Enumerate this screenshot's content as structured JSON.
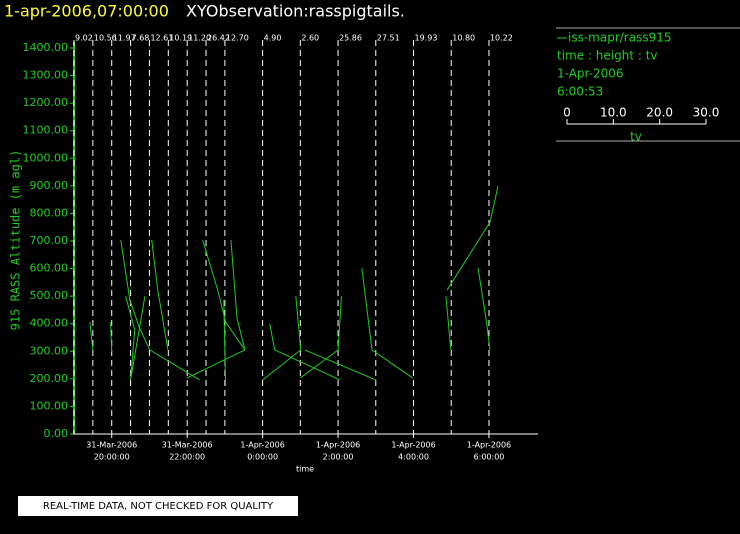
{
  "header": {
    "date": "1-apr-2006,07:00:00",
    "title": "XYObservation:rasspigtails."
  },
  "chart_data": {
    "type": "pigtail",
    "ylabel": "915 RASS Altitude (m agl)",
    "xlabel": "time",
    "color": "#22cc22",
    "xlim": [
      19,
      31.3
    ],
    "ylim": [
      0,
      1400
    ],
    "xticks": [
      {
        "value": 20,
        "label": [
          "31-Mar-2006",
          "20:00:00"
        ]
      },
      {
        "value": 22,
        "label": [
          "31-Mar-2006",
          "22:00:00"
        ]
      },
      {
        "value": 24,
        "label": [
          "1-Apr-2006",
          "0:00:00"
        ]
      },
      {
        "value": 26,
        "label": [
          "1-Apr-2006",
          "2:00:00"
        ]
      },
      {
        "value": 28,
        "label": [
          "1-Apr-2006",
          "4:00:00"
        ]
      },
      {
        "value": 30,
        "label": [
          "1-Apr-2006",
          "6:00:00"
        ]
      }
    ],
    "yticks": [
      {
        "value": 0,
        "label": "0.00"
      },
      {
        "value": 100,
        "label": "100.00"
      },
      {
        "value": 200,
        "label": "200.00"
      },
      {
        "value": 300,
        "label": "300.00"
      },
      {
        "value": 400,
        "label": "400.00"
      },
      {
        "value": 500,
        "label": "500.00"
      },
      {
        "value": 600,
        "label": "600.00"
      },
      {
        "value": 700,
        "label": "700.00"
      },
      {
        "value": 800,
        "label": "800.00"
      },
      {
        "value": 900,
        "label": "900.00"
      },
      {
        "value": 1000,
        "label": "1000.00"
      },
      {
        "value": 1100,
        "label": "1100.00"
      },
      {
        "value": 1200,
        "label": "1200.00"
      },
      {
        "value": 1300,
        "label": "1300.00"
      },
      {
        "value": 1400,
        "label": "1400.00"
      }
    ],
    "markers": {
      "x": [
        19,
        19.5,
        20,
        20.5,
        21,
        21.5,
        22,
        22.5,
        23,
        24,
        25,
        26,
        27,
        28,
        29,
        30
      ],
      "labels": [
        "9.02",
        "10.56",
        "11.97",
        "7.68",
        "12.61",
        "10.19",
        "11.20",
        "26.42",
        "12.70",
        "4.90",
        "2.60",
        "25.86",
        "27.51",
        "19.93",
        "10.80",
        "10.22"
      ]
    },
    "series": [
      {
        "x": [
          19.42,
          19.5
        ],
        "values": [
          406,
          305
        ]
      },
      {
        "x": [
          19.97,
          20.0
        ],
        "values": [
          406,
          297
        ]
      },
      {
        "x": [
          20.24,
          20.48,
          20.74,
          21.01,
          22.33
        ],
        "values": [
          704,
          486,
          384,
          305,
          196
        ]
      },
      {
        "x": [
          20.37,
          20.61,
          20.5,
          20.88
        ],
        "values": [
          500,
          377,
          196,
          500
        ]
      },
      {
        "x": [
          21.06,
          21.22,
          21.49
        ],
        "values": [
          704,
          522,
          305
        ]
      },
      {
        "x": [
          22.41,
          22.81,
          23.02,
          23.53,
          21.99
        ],
        "values": [
          704,
          522,
          406,
          305,
          203
        ]
      },
      {
        "x": [
          22.97,
          23.02
        ],
        "values": [
          486,
          174
        ]
      },
      {
        "x": [
          23.16,
          23.32,
          23.53
        ],
        "values": [
          704,
          421,
          305
        ]
      },
      {
        "x": [
          24.19,
          24.32,
          26.05
        ],
        "values": [
          399,
          305,
          196
        ]
      },
      {
        "x": [
          24.0,
          25.01,
          24.88
        ],
        "values": [
          196,
          305,
          500
        ]
      },
      {
        "x": [
          25.0,
          26.0,
          26.09
        ],
        "values": [
          203,
          305,
          500
        ]
      },
      {
        "x": [
          25.12,
          27.0
        ],
        "values": [
          305,
          196
        ]
      },
      {
        "x": [
          26.63,
          26.9,
          27.98
        ],
        "values": [
          602,
          305,
          203
        ]
      },
      {
        "x": [
          28.86,
          28.99
        ],
        "values": [
          500,
          305
        ]
      },
      {
        "x": [
          28.89,
          30.03,
          30.24
        ],
        "values": [
          522,
          769,
          899
        ]
      },
      {
        "x": [
          29.71,
          29.92,
          30.03
        ],
        "values": [
          602,
          421,
          305
        ]
      }
    ]
  },
  "legend": {
    "name": "iss-mapr/rass915",
    "fields": "time : height : tv",
    "date": "1-Apr-2006",
    "time": "6:00:53",
    "scale": {
      "lim": [
        0,
        30
      ],
      "ticks": [
        0,
        {
          "value": 10,
          "label": "10.0"
        },
        {
          "value": 20,
          "label": "20.0"
        },
        {
          "value": 30,
          "label": "30.0"
        }
      ],
      "label": "tv"
    }
  },
  "footer": "REAL-TIME DATA, NOT CHECKED FOR QUALITY"
}
